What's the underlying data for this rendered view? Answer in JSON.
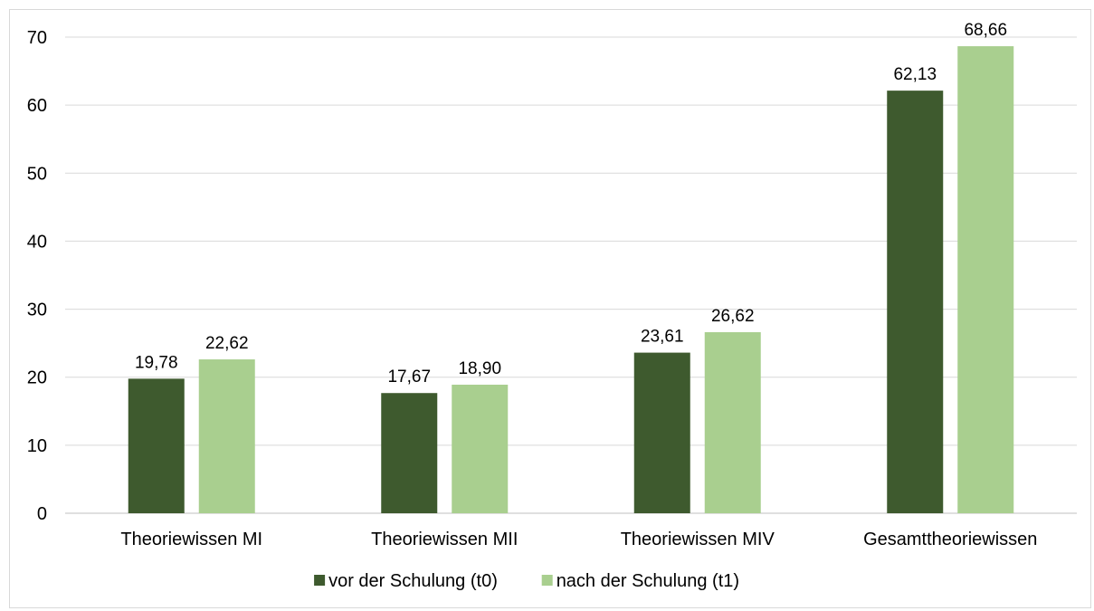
{
  "chart_data": {
    "type": "bar",
    "categories": [
      "Theoriewissen MI",
      "Theoriewissen MII",
      "Theoriewissen MIV",
      "Gesamttheoriewissen"
    ],
    "series": [
      {
        "name": "vor der Schulung (t0)",
        "values": [
          19.78,
          17.67,
          23.61,
          62.13
        ],
        "labels": [
          "19,78",
          "17,67",
          "23,61",
          "62,13"
        ],
        "color": "#3e5a2e"
      },
      {
        "name": "nach der Schulung (t1)",
        "values": [
          22.62,
          18.9,
          26.62,
          68.66
        ],
        "labels": [
          "22,62",
          "18,90",
          "26,62",
          "68,66"
        ],
        "color": "#a9cf8f"
      }
    ],
    "ylim": [
      0,
      70
    ],
    "yticks": [
      "0",
      "10",
      "20",
      "30",
      "40",
      "50",
      "60",
      "70"
    ],
    "grid": true,
    "legend_position": "bottom",
    "title": "",
    "xlabel": "",
    "ylabel": ""
  }
}
